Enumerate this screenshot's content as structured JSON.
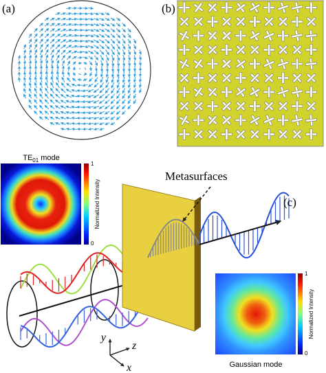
{
  "panels": {
    "a": {
      "label": "(a)"
    },
    "b": {
      "label": "(b)"
    },
    "c": {
      "label": "(c)",
      "metasurface_label": "Metasurfaces",
      "axes": {
        "x": "x",
        "y": "y",
        "z": "z"
      }
    }
  },
  "insets": [
    {
      "title": {
        "main": "TE",
        "sub": "01",
        "suffix": " mode"
      },
      "colorbar_label": "Normalized Intensity",
      "colorbar_max": 1,
      "colorbar_min": 0
    },
    {
      "title": {
        "main": "Gaussian mode"
      },
      "colorbar_label": "Normalized Intensity",
      "colorbar_max": 1,
      "colorbar_min": 0
    }
  ]
}
